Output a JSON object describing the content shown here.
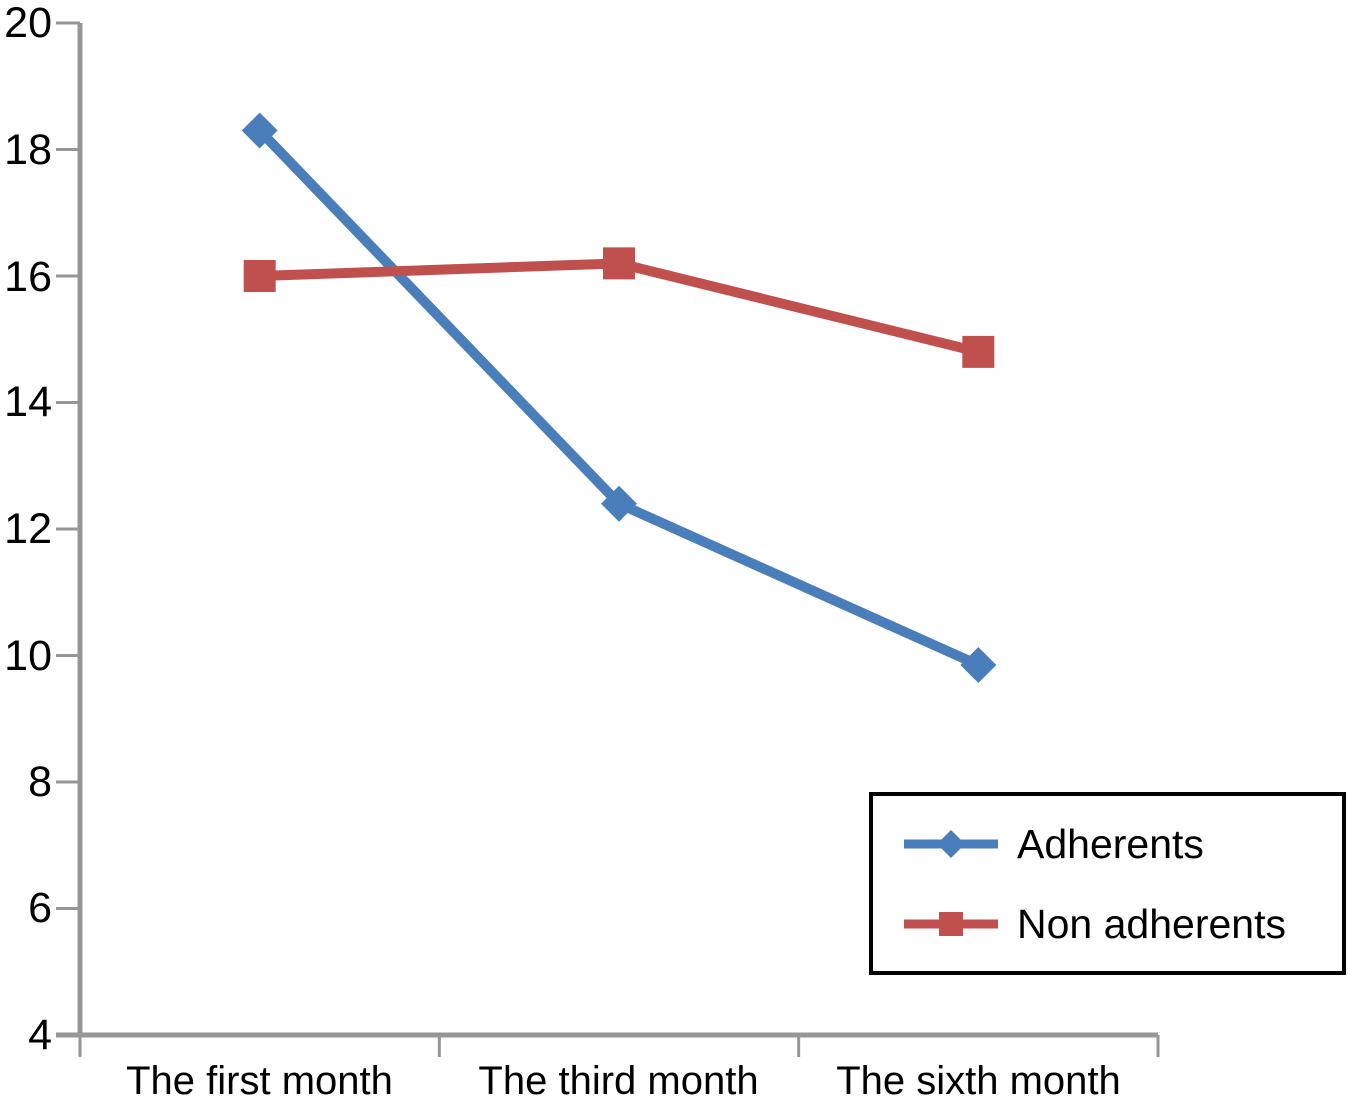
{
  "chart_data": {
    "type": "line",
    "title": "",
    "categories": [
      "The first month",
      "The third month",
      "The sixth month"
    ],
    "series": [
      {
        "name": "Adherents",
        "color": "#4A7EBB",
        "marker": "diamond",
        "values": [
          18.3,
          12.4,
          9.85
        ]
      },
      {
        "name": "Non adherents",
        "color": "#C0504D",
        "marker": "square",
        "values": [
          16.0,
          16.2,
          14.8
        ]
      }
    ],
    "yticks": [
      20,
      18,
      16,
      14,
      12,
      10,
      8,
      6,
      4
    ],
    "ylim": [
      4,
      20
    ],
    "grid": false,
    "legend_position": "bottom-right",
    "axis_color": "#969696",
    "text_color": "#000000",
    "background_color": "#FFFFFF",
    "legend_border_color": "#000000"
  }
}
